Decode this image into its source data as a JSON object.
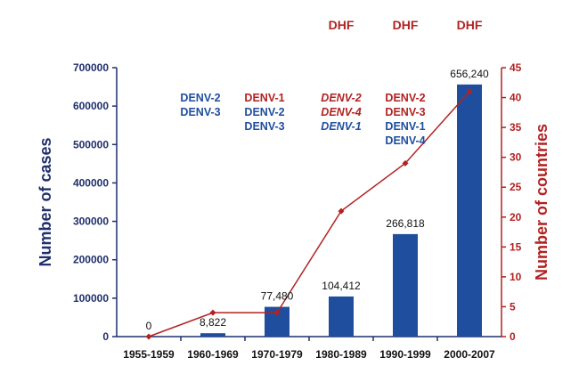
{
  "chart_data": {
    "type": "bar+line",
    "categories": [
      "1955-1959",
      "1960-1969",
      "1970-1979",
      "1980-1989",
      "1990-1999",
      "2000-2007"
    ],
    "series": [
      {
        "values": [
          0,
          8822,
          77480,
          104412,
          266818,
          656240
        ],
        "axis": "left",
        "kind": "bar",
        "color": "#1F4E9E"
      },
      {
        "values": [
          0,
          4,
          4,
          21,
          29,
          41
        ],
        "axis": "right",
        "kind": "line",
        "color": "#B22222"
      }
    ],
    "bar_labels": [
      "0",
      "8,822",
      "77,480",
      "104,412",
      "266,818",
      "656,240"
    ],
    "ylabel_left": "Number of cases",
    "ylabel_right": "Number of countries",
    "ylim_left": [
      0,
      700000
    ],
    "ylim_right": [
      0,
      45
    ],
    "yticks_left": [
      "0",
      "100000",
      "200000",
      "300000",
      "400000",
      "500000",
      "600000",
      "700000"
    ],
    "yticks_right": [
      "0",
      "5",
      "10",
      "15",
      "20",
      "25",
      "30",
      "35",
      "40",
      "45"
    ],
    "annotations": {
      "dhf_label": "DHF",
      "dhf_columns": [
        "1980-1989",
        "1990-1999",
        "2000-2007"
      ],
      "serotypes": [
        {
          "category": "1960-1969",
          "column": "left",
          "items": [
            {
              "text": "DENV-2",
              "color": "#1F4E9E",
              "italic": false
            },
            {
              "text": "DENV-3",
              "color": "#1F4E9E",
              "italic": false
            }
          ]
        },
        {
          "category": "1970-1979",
          "column": "left",
          "items": [
            {
              "text": "DENV-1",
              "color": "#B22222",
              "italic": false
            },
            {
              "text": "DENV-2",
              "color": "#1F4E9E",
              "italic": false
            },
            {
              "text": "DENV-3",
              "color": "#1F4E9E",
              "italic": false
            }
          ]
        },
        {
          "category": "1980-1989",
          "column": "center",
          "items": [
            {
              "text": "DENV-2",
              "color": "#B22222",
              "italic": true
            },
            {
              "text": "DENV-4",
              "color": "#B22222",
              "italic": true
            },
            {
              "text": "DENV-1",
              "color": "#1F4E9E",
              "italic": true
            }
          ]
        },
        {
          "category": "1990-1999",
          "column": "center",
          "items": [
            {
              "text": "DENV-2",
              "color": "#B22222",
              "italic": false
            },
            {
              "text": "DENV-3",
              "color": "#B22222",
              "italic": false
            },
            {
              "text": "DENV-1",
              "color": "#1F4E9E",
              "italic": false
            },
            {
              "text": "DENV-4",
              "color": "#1F4E9E",
              "italic": false
            }
          ]
        }
      ]
    },
    "colors": {
      "left_axis": "#1F2F6B",
      "right_axis": "#B22222",
      "bars": "#1F4E9E",
      "line": "#B22222"
    },
    "grid": false,
    "legend": "none"
  }
}
